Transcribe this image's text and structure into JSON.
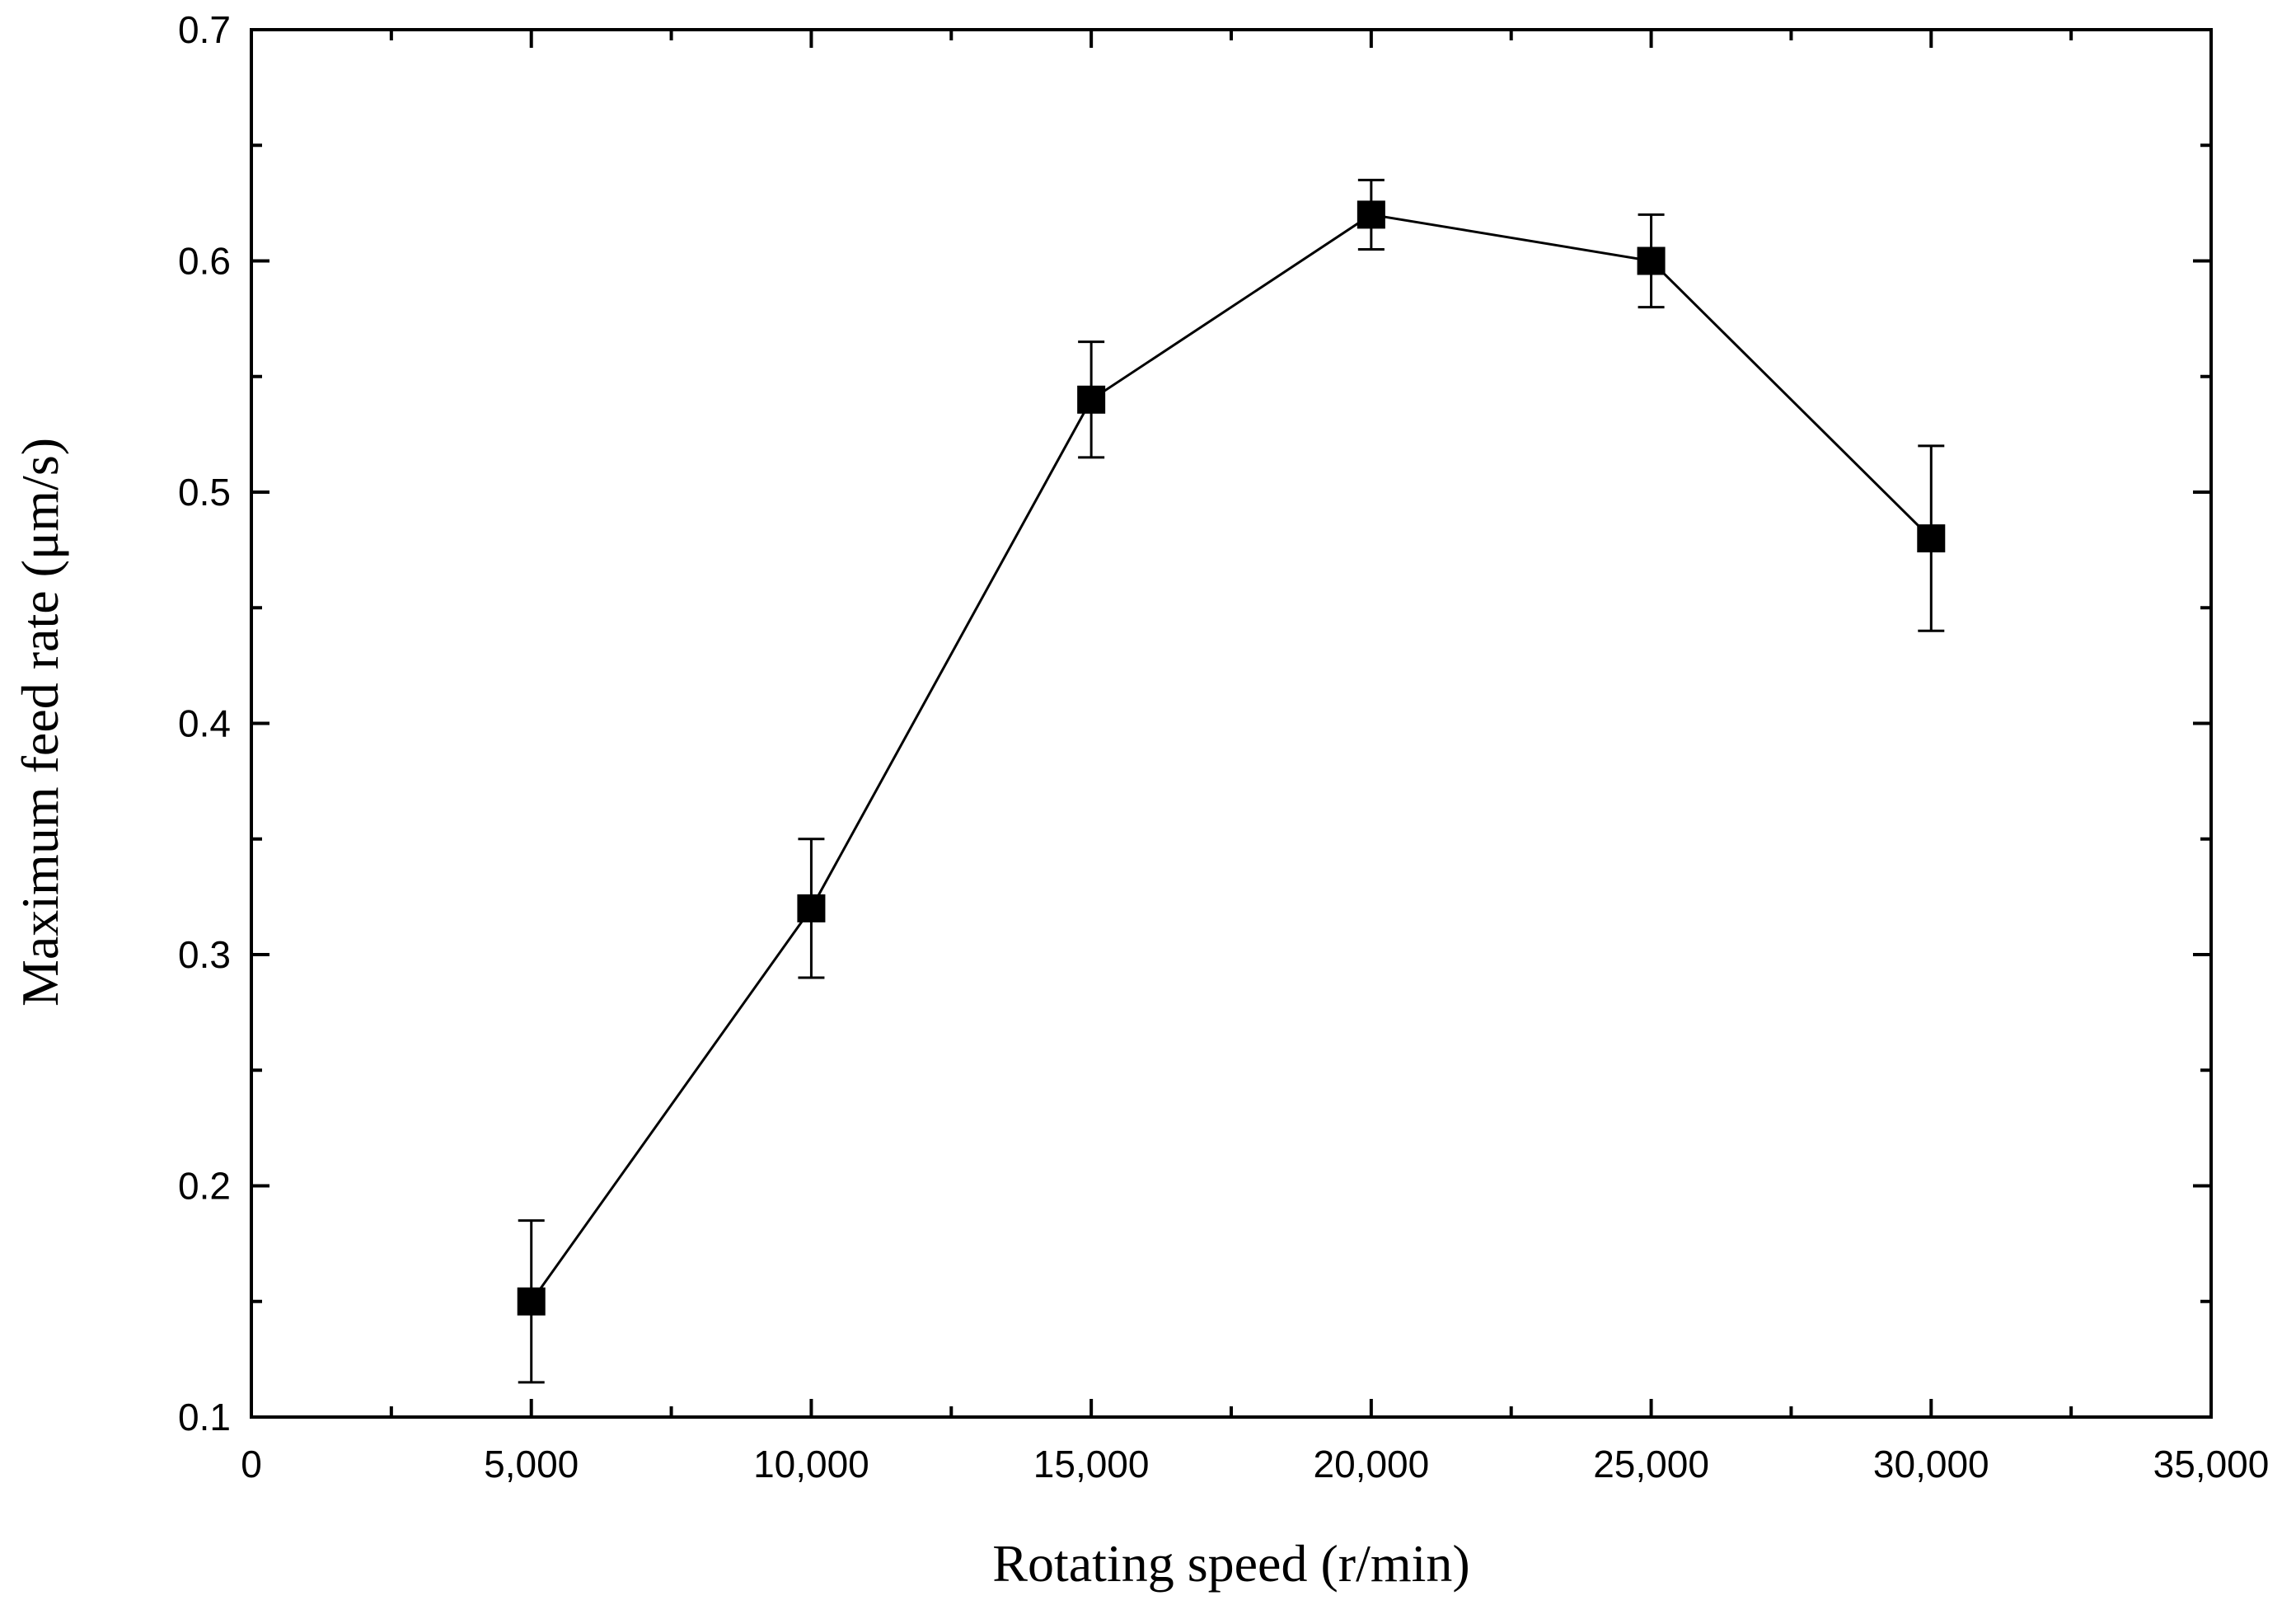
{
  "chart_data": {
    "type": "line",
    "xlabel": "Rotating speed (r/min)",
    "ylabel": "Maximum feed rate (μm/s)",
    "xlim": [
      0,
      35000
    ],
    "ylim": [
      0.1,
      0.7
    ],
    "x_ticks": [
      0,
      5000,
      10000,
      15000,
      20000,
      25000,
      30000,
      35000
    ],
    "x_tick_labels": [
      "0",
      "5,000",
      "10,000",
      "15,000",
      "20,000",
      "25,000",
      "30,000",
      "35,000"
    ],
    "y_ticks": [
      0.1,
      0.2,
      0.3,
      0.4,
      0.5,
      0.6,
      0.7
    ],
    "y_tick_labels": [
      "0.1",
      "0.2",
      "0.3",
      "0.4",
      "0.5",
      "0.6",
      "0.7"
    ],
    "grid": false,
    "marker": "square",
    "line_color": "#000000",
    "series": [
      {
        "x": [
          5000,
          10000,
          15000,
          20000,
          25000,
          30000
        ],
        "y": [
          0.15,
          0.32,
          0.54,
          0.62,
          0.6,
          0.48
        ],
        "err_low": [
          0.115,
          0.29,
          0.515,
          0.605,
          0.58,
          0.44
        ],
        "err_high": [
          0.185,
          0.35,
          0.565,
          0.635,
          0.62,
          0.52
        ]
      }
    ]
  }
}
